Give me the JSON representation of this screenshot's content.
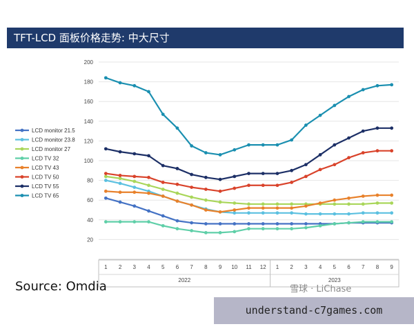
{
  "title": "TFT-LCD 面板价格走势: 中大尺寸",
  "source": "Source: Omdia",
  "watermark": "雪球 · LiChase",
  "banner": "understand-c7games.com",
  "chart_data": {
    "type": "line",
    "x_ticks": [
      "1",
      "2",
      "3",
      "4",
      "5",
      "6",
      "7",
      "8",
      "9",
      "10",
      "11",
      "12",
      "1",
      "2",
      "3",
      "4",
      "5",
      "6",
      "7",
      "8",
      "9"
    ],
    "groups": [
      {
        "label": "2022",
        "start": 0,
        "end": 11
      },
      {
        "label": "2023",
        "start": 12,
        "end": 20
      }
    ],
    "ylim": [
      0,
      200
    ],
    "yticks": [
      20,
      40,
      60,
      80,
      100,
      120,
      140,
      160,
      180,
      200
    ],
    "grid": true,
    "legend_position": "left",
    "series": [
      {
        "name": "LCD monitor 21.5",
        "color": "#4472c4",
        "values": [
          62,
          58,
          54,
          49,
          44,
          39,
          37,
          36,
          36,
          36,
          36,
          36,
          36,
          36,
          36,
          36,
          36,
          37,
          37,
          37,
          37
        ]
      },
      {
        "name": "LCD monitor 23.8",
        "color": "#5bc0e0",
        "values": [
          80,
          77,
          73,
          69,
          64,
          59,
          55,
          51,
          48,
          47,
          47,
          47,
          47,
          47,
          46,
          46,
          46,
          46,
          47,
          47,
          47
        ]
      },
      {
        "name": "LCD monitor 27",
        "color": "#a9d65a",
        "values": [
          84,
          82,
          79,
          75,
          71,
          67,
          63,
          60,
          58,
          57,
          56,
          56,
          56,
          56,
          56,
          56,
          56,
          56,
          56,
          57,
          57
        ]
      },
      {
        "name": "LCD TV 32",
        "color": "#5fcfa8",
        "values": [
          38,
          38,
          38,
          38,
          34,
          31,
          29,
          27,
          27,
          28,
          31,
          31,
          31,
          31,
          32,
          34,
          36,
          37,
          38,
          38,
          38
        ]
      },
      {
        "name": "LCD TV 43",
        "color": "#e8812b",
        "values": [
          69,
          68,
          68,
          67,
          64,
          59,
          55,
          50,
          48,
          50,
          52,
          52,
          52,
          52,
          54,
          57,
          60,
          62,
          64,
          65,
          65
        ]
      },
      {
        "name": "LCD TV 50",
        "color": "#d9432b",
        "values": [
          87,
          85,
          84,
          83,
          78,
          76,
          73,
          71,
          69,
          72,
          75,
          75,
          75,
          78,
          84,
          91,
          96,
          103,
          108,
          110,
          110
        ]
      },
      {
        "name": "LCD TV 55",
        "color": "#1c2f66",
        "values": [
          112,
          109,
          107,
          105,
          95,
          92,
          86,
          83,
          81,
          84,
          87,
          87,
          87,
          90,
          96,
          106,
          116,
          123,
          130,
          133,
          133
        ]
      },
      {
        "name": "LCD TV 65",
        "color": "#1a8fb0",
        "values": [
          184,
          179,
          176,
          170,
          147,
          133,
          115,
          108,
          106,
          111,
          116,
          116,
          116,
          121,
          136,
          146,
          156,
          165,
          172,
          176,
          177
        ]
      }
    ]
  }
}
